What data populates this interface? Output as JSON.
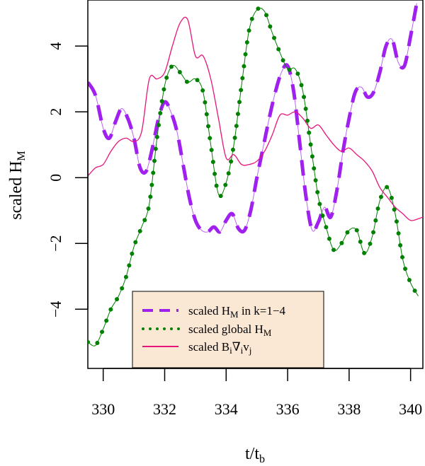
{
  "chart_data": {
    "type": "line",
    "xlabel": "t/t_b",
    "ylabel": "scaled H_M",
    "xlim": [
      329.5,
      340.4
    ],
    "ylim": [
      -5.8,
      5.4
    ],
    "xticks": [
      330,
      332,
      334,
      336,
      338,
      340
    ],
    "yticks": [
      -4,
      -2,
      0,
      2,
      4
    ],
    "xtick_labels": [
      "330",
      "332",
      "334",
      "336",
      "338",
      "340"
    ],
    "ytick_labels": [
      "−4",
      "−2",
      "0",
      "2",
      "4"
    ],
    "legend_position": "bottom-left",
    "legend_bg": "#fbe8d4",
    "series": [
      {
        "name": "scaled H_M in k=1−4",
        "color": "#a020f0",
        "style": "dashed",
        "x": [
          329.5,
          329.75,
          330.0,
          330.2,
          330.4,
          330.6,
          330.8,
          331.0,
          331.2,
          331.4,
          331.6,
          331.8,
          332.0,
          332.2,
          332.4,
          332.6,
          332.8,
          333.0,
          333.2,
          333.4,
          333.6,
          333.8,
          334.0,
          334.2,
          334.4,
          334.6,
          334.8,
          335.0,
          335.2,
          335.4,
          335.6,
          335.8,
          336.0,
          336.2,
          336.4,
          336.6,
          336.8,
          337.0,
          337.2,
          337.4,
          337.6,
          337.8,
          338.0,
          338.2,
          338.4,
          338.6,
          338.8,
          339.0,
          339.2,
          339.4,
          339.6,
          339.8,
          340.0,
          340.2
        ],
        "y": [
          2.9,
          2.5,
          1.5,
          1.2,
          1.7,
          2.1,
          1.8,
          1.2,
          0.3,
          0.2,
          0.9,
          1.8,
          2.3,
          2.0,
          1.4,
          0.4,
          -0.6,
          -1.3,
          -1.6,
          -1.65,
          -1.5,
          -1.65,
          -1.3,
          -1.1,
          -1.55,
          -1.6,
          -1.0,
          0.0,
          0.9,
          1.8,
          2.6,
          3.2,
          3.4,
          2.6,
          1.0,
          -0.6,
          -1.6,
          -1.35,
          -0.9,
          -1.2,
          -0.4,
          0.8,
          1.8,
          2.6,
          2.75,
          2.45,
          2.6,
          3.2,
          4.0,
          4.2,
          3.5,
          3.4,
          4.3,
          5.3
        ]
      },
      {
        "name": "scaled global H_M",
        "color": "#008000",
        "style": "dotted",
        "x": [
          329.5,
          329.75,
          330.0,
          330.25,
          330.5,
          330.75,
          331.0,
          331.25,
          331.5,
          331.75,
          332.0,
          332.25,
          332.5,
          332.75,
          333.0,
          333.25,
          333.5,
          333.75,
          334.0,
          334.25,
          334.5,
          334.75,
          335.0,
          335.25,
          335.5,
          335.75,
          336.0,
          336.25,
          336.5,
          336.75,
          337.0,
          337.25,
          337.5,
          337.75,
          338.0,
          338.25,
          338.5,
          338.75,
          339.0,
          339.25,
          339.5,
          339.75,
          340.0,
          340.25
        ],
        "y": [
          -5.0,
          -5.1,
          -4.6,
          -4.0,
          -3.6,
          -3.0,
          -2.1,
          -1.5,
          -0.8,
          1.2,
          2.8,
          3.4,
          3.2,
          2.9,
          3.0,
          2.6,
          1.0,
          -0.5,
          -0.15,
          1.0,
          2.8,
          4.5,
          5.1,
          5.05,
          4.4,
          3.8,
          3.3,
          3.3,
          2.6,
          1.0,
          -0.6,
          -1.5,
          -2.2,
          -2.0,
          -1.6,
          -1.6,
          -2.3,
          -1.8,
          -0.7,
          -0.3,
          -1.1,
          -2.5,
          -3.2,
          -3.6
        ]
      },
      {
        "name": "scaled B_i∇_i v_j",
        "color": "#e8147a",
        "style": "solid",
        "x": [
          329.5,
          329.75,
          330.0,
          330.25,
          330.5,
          330.75,
          331.0,
          331.25,
          331.5,
          331.75,
          332.0,
          332.25,
          332.5,
          332.75,
          333.0,
          333.25,
          333.5,
          333.75,
          334.0,
          334.25,
          334.5,
          334.75,
          335.0,
          335.25,
          335.5,
          335.75,
          336.0,
          336.25,
          336.5,
          336.75,
          337.0,
          337.25,
          337.5,
          337.75,
          338.0,
          338.25,
          338.5,
          338.75,
          339.0,
          339.25,
          339.5,
          339.75,
          340.0,
          340.25,
          340.4
        ],
        "y": [
          0.05,
          0.3,
          0.4,
          0.8,
          1.1,
          1.2,
          1.1,
          1.4,
          3.0,
          3.0,
          3.2,
          4.0,
          4.7,
          4.8,
          3.7,
          3.7,
          3.0,
          1.8,
          0.6,
          0.7,
          0.4,
          0.4,
          0.5,
          0.8,
          1.3,
          1.9,
          1.9,
          2.0,
          1.8,
          1.5,
          1.6,
          1.3,
          1.0,
          0.8,
          0.9,
          0.7,
          0.5,
          0.2,
          -0.3,
          -0.6,
          -0.9,
          -1.1,
          -1.3,
          -1.25,
          -1.2
        ]
      }
    ]
  },
  "text": {
    "xlabel_main": "t/t",
    "xlabel_sub": "b",
    "ylabel_main": "scaled H",
    "ylabel_sub": "M",
    "legend": [
      {
        "main": "scaled H",
        "sub": "M",
        "tail": " in k=1−4"
      },
      {
        "main": "scaled global H",
        "sub": "M",
        "tail": ""
      },
      {
        "main": "scaled B",
        "sub": "i",
        "main2": "∇",
        "sub2": "i",
        "main3": "v",
        "sub3": "j"
      }
    ]
  }
}
